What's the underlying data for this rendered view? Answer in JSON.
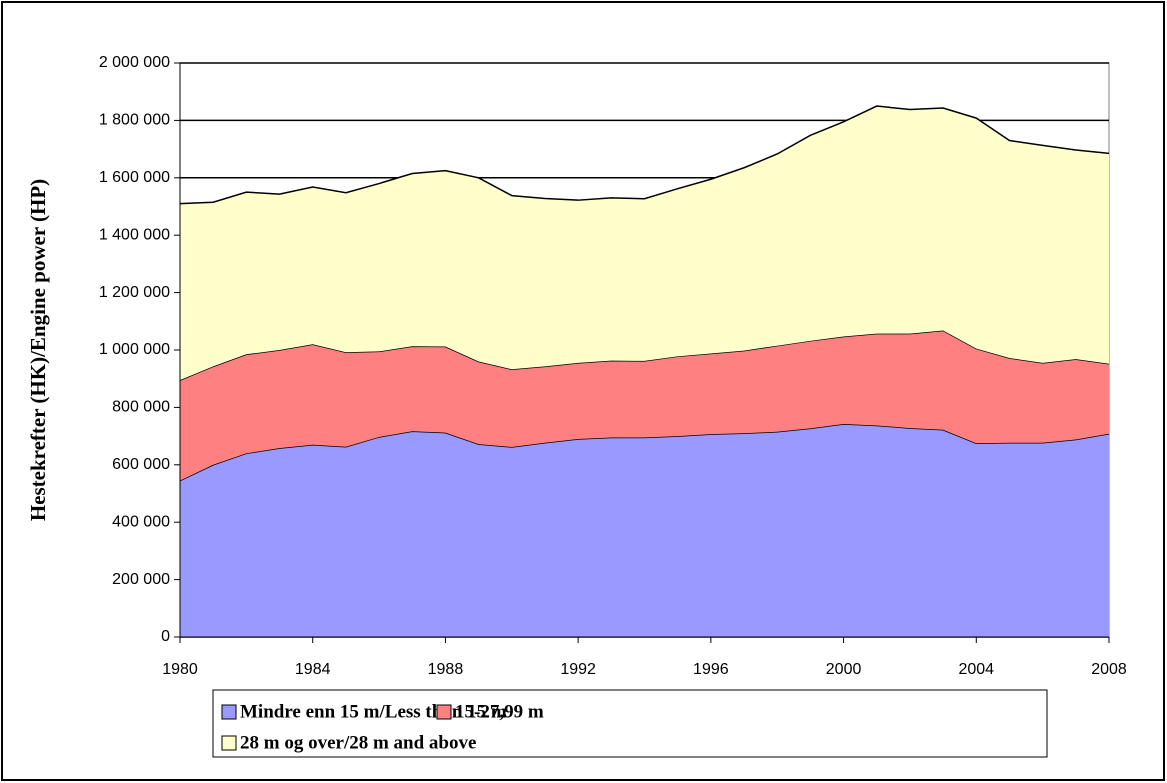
{
  "chart_data": {
    "type": "area",
    "stacked": true,
    "ylabel": "Hestekrefter (HK)/Engine power (HP)",
    "x": [
      1980,
      1981,
      1982,
      1983,
      1984,
      1985,
      1986,
      1987,
      1988,
      1989,
      1990,
      1991,
      1992,
      1993,
      1994,
      1995,
      1996,
      1997,
      1998,
      1999,
      2000,
      2001,
      2002,
      2003,
      2004,
      2005,
      2006,
      2007,
      2008
    ],
    "series": [
      {
        "name": "Mindre enn 15 m/Less than 15 m",
        "color": "#9999ff",
        "values": [
          545000,
          600000,
          640000,
          658000,
          670000,
          663000,
          697000,
          717000,
          712000,
          672000,
          662000,
          677000,
          690000,
          695000,
          695000,
          700000,
          707000,
          710000,
          715000,
          727000,
          742000,
          737000,
          728000,
          722000,
          675000,
          677000,
          677000,
          688000,
          708000
        ]
      },
      {
        "name": "15-27,99 m",
        "color": "#ff8080",
        "values": [
          350000,
          343000,
          345000,
          342000,
          350000,
          329000,
          298000,
          296000,
          300000,
          288000,
          271000,
          266000,
          265000,
          268000,
          267000,
          278000,
          281000,
          288000,
          300000,
          305000,
          305000,
          320000,
          329000,
          346000,
          330000,
          295000,
          278000,
          280000,
          244000
        ]
      },
      {
        "name": "28 m og over/28 m and above",
        "color": "#ffffcc",
        "values": [
          615000,
          572000,
          565000,
          543000,
          548000,
          556000,
          585000,
          602000,
          613000,
          640000,
          605000,
          585000,
          567000,
          567000,
          565000,
          584000,
          607000,
          637000,
          668000,
          716000,
          748000,
          793000,
          781000,
          775000,
          803000,
          758000,
          758000,
          729000,
          733000
        ]
      }
    ],
    "xlim": [
      1980,
      2008
    ],
    "xticks": [
      1980,
      1984,
      1988,
      1992,
      1996,
      2000,
      2004,
      2008
    ],
    "ylim": [
      0,
      2000000
    ],
    "yticks": [
      0,
      {
        "value": 200000,
        "label": "200 000"
      },
      {
        "value": 400000,
        "label": "400 000"
      },
      {
        "value": 600000,
        "label": "600 000"
      },
      {
        "value": 800000,
        "label": "800 000"
      },
      {
        "value": 1000000,
        "label": "1 000 000"
      },
      {
        "value": 1200000,
        "label": "1 200 000"
      },
      {
        "value": 1400000,
        "label": "1 400 000"
      },
      {
        "value": 1600000,
        "label": "1 600 000"
      },
      {
        "value": 1800000,
        "label": "1 800 000"
      },
      {
        "value": 2000000,
        "label": "2 000 000"
      }
    ],
    "grid": true
  }
}
